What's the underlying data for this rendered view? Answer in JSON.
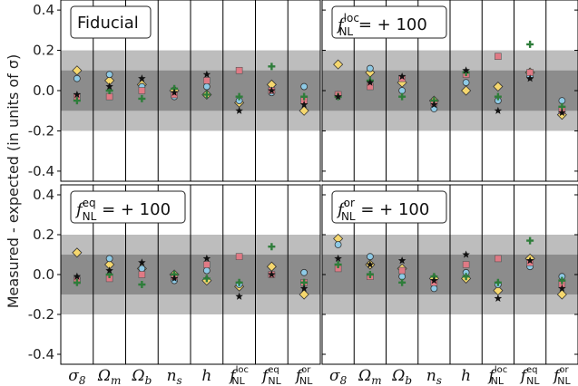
{
  "y_axis_label": "Measured - expected (in units of σ)",
  "chart_data": [
    {
      "type": "scatter",
      "panel_title": {
        "base": "f",
        "sup": "",
        "sub": "",
        "text": "Fiducial"
      },
      "categories": [
        "σ8",
        "Ωm",
        "Ωb",
        "ns",
        "h",
        "fNL_loc",
        "fNL_eq",
        "fNL_or"
      ],
      "ylim": [
        -0.45,
        0.45
      ],
      "yticks": [
        "0.4",
        "0.2",
        "0.0",
        "-0.2",
        "-0.4"
      ],
      "bands": {
        "inner": 0.1,
        "outer": 0.2
      },
      "series": [
        {
          "marker": "diamond",
          "color": "#f5d76e",
          "values": [
            0.1,
            0.05,
            0.03,
            0.0,
            -0.02,
            -0.06,
            0.03,
            -0.1
          ]
        },
        {
          "marker": "circle",
          "color": "#8ecae6",
          "values": [
            0.06,
            0.08,
            0.02,
            -0.03,
            0.02,
            -0.05,
            -0.01,
            0.02
          ]
        },
        {
          "marker": "square",
          "color": "#e07a85",
          "values": [
            -0.03,
            -0.03,
            0.0,
            -0.02,
            0.05,
            0.1,
            0.0,
            -0.05
          ]
        },
        {
          "marker": "plus",
          "color": "#2e7d3a",
          "values": [
            -0.05,
            0.0,
            -0.04,
            0.01,
            -0.02,
            -0.03,
            0.12,
            -0.03
          ]
        },
        {
          "marker": "star",
          "color": "#111111",
          "values": [
            -0.02,
            0.02,
            0.06,
            -0.01,
            0.08,
            -0.1,
            0.0,
            -0.07
          ]
        }
      ]
    },
    {
      "type": "scatter",
      "panel_title": {
        "base": "f",
        "sup": "loc",
        "sub": "NL",
        "text": " = + 100"
      },
      "categories": [
        "σ8",
        "Ωm",
        "Ωb",
        "ns",
        "h",
        "fNL_loc",
        "fNL_eq",
        "fNL_or"
      ],
      "ylim": [
        -0.45,
        0.45
      ],
      "yticks": [
        "0.4",
        "0.2",
        "0.0",
        "-0.2",
        "-0.4"
      ],
      "bands": {
        "inner": 0.1,
        "outer": 0.2
      },
      "series": [
        {
          "marker": "diamond",
          "color": "#f5d76e",
          "values": [
            0.13,
            0.09,
            0.04,
            -0.05,
            0.0,
            0.02,
            0.09,
            -0.12
          ]
        },
        {
          "marker": "circle",
          "color": "#8ecae6",
          "values": [
            -0.02,
            0.11,
            0.0,
            -0.09,
            0.04,
            -0.05,
            0.07,
            -0.05
          ]
        },
        {
          "marker": "square",
          "color": "#e07a85",
          "values": [
            -0.02,
            0.02,
            0.06,
            -0.06,
            0.08,
            0.17,
            0.09,
            -0.1
          ]
        },
        {
          "marker": "plus",
          "color": "#2e7d3a",
          "values": [
            -0.03,
            0.05,
            -0.03,
            -0.05,
            0.09,
            -0.03,
            0.23,
            -0.08
          ]
        },
        {
          "marker": "star",
          "color": "#111111",
          "values": [
            -0.03,
            0.04,
            0.07,
            -0.07,
            0.1,
            -0.1,
            0.06,
            -0.11
          ]
        }
      ]
    },
    {
      "type": "scatter",
      "panel_title": {
        "base": "f",
        "sup": "eq",
        "sub": "NL",
        "text": " = + 100"
      },
      "categories": [
        "σ8",
        "Ωm",
        "Ωb",
        "ns",
        "h",
        "fNL_loc",
        "fNL_eq",
        "fNL_or"
      ],
      "ylim": [
        -0.45,
        0.45
      ],
      "yticks": [
        "0.4",
        "0.2",
        "0.0",
        "-0.2",
        "-0.4"
      ],
      "bands": {
        "inner": 0.1,
        "outer": 0.2
      },
      "series": [
        {
          "marker": "diamond",
          "color": "#f5d76e",
          "values": [
            0.11,
            0.05,
            0.03,
            0.0,
            -0.03,
            -0.06,
            0.04,
            -0.1
          ]
        },
        {
          "marker": "circle",
          "color": "#8ecae6",
          "values": [
            -0.02,
            0.08,
            0.03,
            -0.03,
            0.02,
            -0.05,
            0.0,
            0.01
          ]
        },
        {
          "marker": "square",
          "color": "#e07a85",
          "values": [
            -0.03,
            -0.02,
            0.0,
            -0.01,
            0.05,
            0.09,
            0.0,
            -0.04
          ]
        },
        {
          "marker": "plus",
          "color": "#2e7d3a",
          "values": [
            -0.04,
            0.0,
            -0.05,
            0.0,
            -0.02,
            -0.04,
            0.14,
            -0.04
          ]
        },
        {
          "marker": "star",
          "color": "#111111",
          "values": [
            -0.01,
            0.02,
            0.06,
            -0.02,
            0.08,
            -0.11,
            0.0,
            -0.07
          ]
        }
      ]
    },
    {
      "type": "scatter",
      "panel_title": {
        "base": "f",
        "sup": "or",
        "sub": "NL",
        "text": " = + 100"
      },
      "categories": [
        "σ8",
        "Ωm",
        "Ωb",
        "ns",
        "h",
        "fNL_loc",
        "fNL_eq",
        "fNL_or"
      ],
      "ylim": [
        -0.45,
        0.45
      ],
      "yticks": [
        "0.4",
        "0.2",
        "0.0",
        "-0.2",
        "-0.4"
      ],
      "bands": {
        "inner": 0.1,
        "outer": 0.2
      },
      "series": [
        {
          "marker": "diamond",
          "color": "#f5d76e",
          "values": [
            0.18,
            0.05,
            0.03,
            -0.02,
            -0.02,
            -0.08,
            0.08,
            -0.1
          ]
        },
        {
          "marker": "circle",
          "color": "#8ecae6",
          "values": [
            0.15,
            0.09,
            -0.01,
            -0.07,
            0.01,
            -0.05,
            0.04,
            -0.01
          ]
        },
        {
          "marker": "square",
          "color": "#e07a85",
          "values": [
            0.03,
            -0.01,
            0.02,
            -0.04,
            0.05,
            0.08,
            0.06,
            -0.05
          ]
        },
        {
          "marker": "plus",
          "color": "#2e7d3a",
          "values": [
            0.05,
            0.0,
            -0.04,
            -0.01,
            -0.01,
            -0.04,
            0.17,
            -0.03
          ]
        },
        {
          "marker": "star",
          "color": "#111111",
          "values": [
            0.08,
            0.05,
            0.07,
            -0.03,
            0.1,
            -0.12,
            0.07,
            -0.07
          ]
        }
      ]
    }
  ]
}
